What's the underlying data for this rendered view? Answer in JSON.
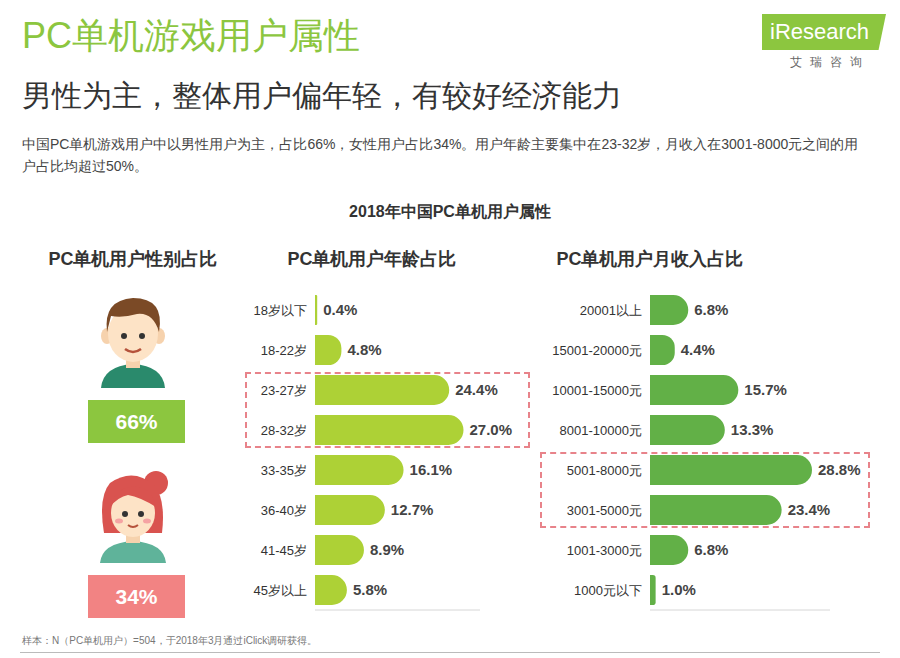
{
  "header": {
    "title": "PC单机游戏用户属性",
    "subtitle": "男性为主，整体用户偏年轻，有较好经济能力",
    "description": "中国PC单机游戏用户中以男性用户为主，占比66%，女性用户占比34%。用户年龄主要集中在23-32岁，月收入在3001-8000元之间的用户占比均超过50%。",
    "logo": "iResearch",
    "logo_subtitle": "艾瑞咨询"
  },
  "figure_title": "2018年中国PC单机用户属性",
  "chart_data": [
    {
      "type": "pictogram",
      "title": "PC单机用户性别占比",
      "values": [
        66,
        34
      ],
      "value_labels": [
        "66%",
        "34%"
      ],
      "colors": [
        "#8cc63f",
        "#f28383"
      ]
    },
    {
      "type": "bar",
      "orientation": "horizontal",
      "title": "PC单机用户年龄占比",
      "categories": [
        "18岁以下",
        "18-22岁",
        "23-27岁",
        "28-32岁",
        "33-35岁",
        "36-40岁",
        "41-45岁",
        "45岁以上"
      ],
      "values": [
        0.4,
        4.8,
        24.4,
        27.0,
        16.1,
        12.7,
        8.9,
        5.8
      ],
      "value_labels": [
        "0.4%",
        "4.8%",
        "24.4%",
        "27.0%",
        "16.1%",
        "12.7%",
        "8.9%",
        "5.8%"
      ],
      "color": "#add136",
      "xlim": [
        0,
        30
      ],
      "data_labels": true,
      "tick_labels": "y",
      "highlight": [
        "23-27岁",
        "28-32岁"
      ]
    },
    {
      "type": "bar",
      "orientation": "horizontal",
      "title": "PC单机用户月收入占比",
      "categories": [
        "20001以上",
        "15001-20000元",
        "10001-15000元",
        "8001-10000元",
        "5001-8000元",
        "3001-5000元",
        "1001-3000元",
        "1000元以下"
      ],
      "values": [
        6.8,
        4.4,
        15.7,
        13.3,
        28.8,
        23.4,
        6.8,
        1.0
      ],
      "value_labels": [
        "6.8%",
        "4.4%",
        "15.7%",
        "13.3%",
        "28.8%",
        "23.4%",
        "6.8%",
        "1.0%"
      ],
      "color": "#62b047",
      "xlim": [
        0,
        32
      ],
      "data_labels": true,
      "tick_labels": "y",
      "highlight": [
        "5001-8000元",
        "3001-5000元"
      ]
    }
  ],
  "note": "样本：N（PC单机用户）=504，于2018年3月通过iClick调研获得。"
}
